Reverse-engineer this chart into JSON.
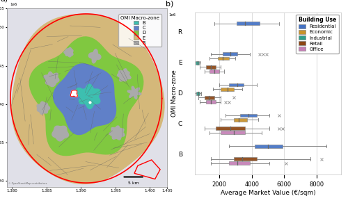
{
  "panel_b": {
    "zones": [
      "R",
      "E",
      "D",
      "C",
      "B"
    ],
    "categories": [
      "Residential",
      "Economic",
      "Industrial",
      "Retail",
      "Office"
    ],
    "colors": {
      "Residential": "#4472c4",
      "Economic": "#c8922a",
      "Industrial": "#2e9e8a",
      "Retail": "#8b4513",
      "Office": "#c47fb5"
    },
    "boxplot_data": {
      "R": {
        "Residential": {
          "q1": 3050,
          "median": 3600,
          "q3": 4500,
          "whislo": 1700,
          "whishi": 5700,
          "fliers": []
        },
        "Economic": null,
        "Industrial": null,
        "Retail": null,
        "Office": null
      },
      "E": {
        "Residential": {
          "q1": 2200,
          "median": 2700,
          "q3": 3100,
          "whislo": 1500,
          "whishi": 3900,
          "fliers": [
            4500,
            4700,
            4900
          ]
        },
        "Economic": {
          "q1": 1900,
          "median": 2200,
          "q3": 2600,
          "whislo": 1400,
          "whishi": 3000,
          "fliers": []
        },
        "Industrial": {
          "q1": 550,
          "median": 650,
          "q3": 750,
          "whislo": 450,
          "whishi": 850,
          "fliers": []
        },
        "Retail": {
          "q1": 1200,
          "median": 1500,
          "q3": 1800,
          "whislo": 800,
          "whishi": 2100,
          "fliers": []
        },
        "Office": {
          "q1": 1400,
          "median": 1700,
          "q3": 2000,
          "whislo": 1100,
          "whishi": 2300,
          "fliers": []
        }
      },
      "D": {
        "Residential": {
          "q1": 2600,
          "median": 3100,
          "q3": 3500,
          "whislo": 2000,
          "whishi": 4300,
          "fliers": []
        },
        "Economic": {
          "q1": 2100,
          "median": 2500,
          "q3": 2900,
          "whislo": 1600,
          "whishi": 3400,
          "fliers": []
        },
        "Industrial": {
          "q1": 600,
          "median": 700,
          "q3": 800,
          "whislo": 500,
          "whishi": 900,
          "fliers": []
        },
        "Retail": {
          "q1": 1100,
          "median": 1350,
          "q3": 1700,
          "whislo": 700,
          "whishi": 2100,
          "fliers": [
            2900
          ]
        },
        "Office": {
          "q1": 1200,
          "median": 1500,
          "q3": 1800,
          "whislo": 800,
          "whishi": 2100,
          "fliers": [
            2400,
            2600
          ]
        }
      },
      "C": {
        "Residential": {
          "q1": 3300,
          "median": 3800,
          "q3": 4300,
          "whislo": 2400,
          "whishi": 5100,
          "fliers": [
            5700
          ]
        },
        "Economic": {
          "q1": 2900,
          "median": 3200,
          "q3": 3700,
          "whislo": 2100,
          "whishi": 4400,
          "fliers": []
        },
        "Industrial": null,
        "Retail": {
          "q1": 1800,
          "median": 2700,
          "q3": 3600,
          "whislo": 1100,
          "whishi": 5100,
          "fliers": [
            5700,
            5900
          ]
        },
        "Office": {
          "q1": 2100,
          "median": 2900,
          "q3": 3600,
          "whislo": 1400,
          "whishi": 4600,
          "fliers": []
        }
      },
      "B": {
        "Residential": {
          "q1": 4200,
          "median": 5000,
          "q3": 5900,
          "whislo": 2600,
          "whishi": 8600,
          "fliers": []
        },
        "Economic": null,
        "Industrial": null,
        "Retail": {
          "q1": 2900,
          "median": 3400,
          "q3": 4300,
          "whislo": 1500,
          "whishi": 7600,
          "fliers": [
            8300
          ]
        },
        "Office": {
          "q1": 2600,
          "median": 3100,
          "q3": 3900,
          "whislo": 1500,
          "whishi": 5100,
          "fliers": [
            6100
          ]
        }
      }
    },
    "xlabel": "Average Market Value (€/sqm)",
    "ylabel": "OMI Macro-zone",
    "xlim": [
      500,
      9500
    ],
    "xticks": [
      2000,
      4000,
      6000,
      8000
    ]
  },
  "panel_a": {
    "legend_colors": {
      "B": "#3dbfb0",
      "C": "#6080c8",
      "D": "#80c840",
      "E": "#d4b87a",
      "R": "#aaaaaa"
    },
    "bg_color": "#e0e0e8",
    "title": "OMI Macro-zone"
  }
}
